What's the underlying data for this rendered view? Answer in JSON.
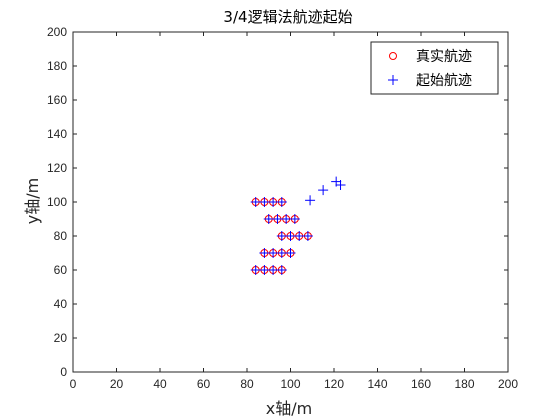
{
  "chart_data": {
    "type": "scatter",
    "title": "3/4逻辑法航迹起始",
    "xlabel": "x轴/m",
    "ylabel": "y轴/m",
    "xlim": [
      0,
      200
    ],
    "ylim": [
      0,
      200
    ],
    "xticks": [
      0,
      20,
      40,
      60,
      80,
      100,
      120,
      140,
      160,
      180,
      200
    ],
    "yticks": [
      0,
      20,
      40,
      60,
      80,
      100,
      120,
      140,
      160,
      180,
      200
    ],
    "grid": false,
    "legend_position": "top-right",
    "series": [
      {
        "name": "真实航迹",
        "marker": "circle",
        "color": "#ff0000",
        "points": [
          [
            84,
            100
          ],
          [
            88,
            100
          ],
          [
            92,
            100
          ],
          [
            96,
            100
          ],
          [
            90,
            90
          ],
          [
            94,
            90
          ],
          [
            98,
            90
          ],
          [
            102,
            90
          ],
          [
            96,
            80
          ],
          [
            100,
            80
          ],
          [
            104,
            80
          ],
          [
            108,
            80
          ],
          [
            88,
            70
          ],
          [
            92,
            70
          ],
          [
            96,
            70
          ],
          [
            100,
            70
          ],
          [
            84,
            60
          ],
          [
            88,
            60
          ],
          [
            92,
            60
          ],
          [
            96,
            60
          ]
        ]
      },
      {
        "name": "起始航迹",
        "marker": "plus",
        "color": "#0000ff",
        "points": [
          [
            84,
            100
          ],
          [
            88,
            100
          ],
          [
            92,
            100
          ],
          [
            96,
            100
          ],
          [
            90,
            90
          ],
          [
            94,
            90
          ],
          [
            98,
            90
          ],
          [
            102,
            90
          ],
          [
            96,
            80
          ],
          [
            100,
            80
          ],
          [
            104,
            80
          ],
          [
            108,
            80
          ],
          [
            88,
            70
          ],
          [
            92,
            70
          ],
          [
            96,
            70
          ],
          [
            100,
            70
          ],
          [
            84,
            60
          ],
          [
            88,
            60
          ],
          [
            92,
            60
          ],
          [
            96,
            60
          ],
          [
            109,
            101
          ],
          [
            115,
            107
          ],
          [
            121,
            112
          ],
          [
            123,
            110
          ]
        ]
      }
    ]
  }
}
